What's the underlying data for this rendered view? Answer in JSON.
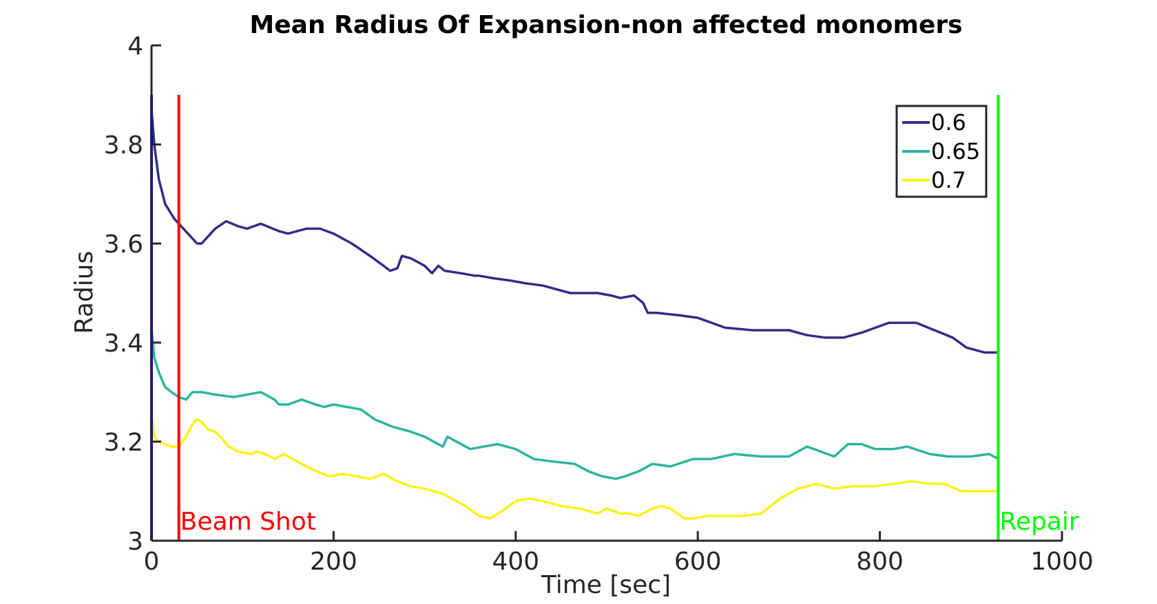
{
  "chart_data": {
    "type": "line",
    "title": "Mean Radius Of Expansion-non affected monomers",
    "xlabel": "Time [sec]",
    "ylabel": "Radius",
    "xlim": [
      0,
      1000
    ],
    "ylim": [
      3,
      4
    ],
    "xticks": [
      0,
      200,
      400,
      600,
      800,
      1000
    ],
    "yticks": [
      3,
      3.2,
      3.4,
      3.6,
      3.8,
      4
    ],
    "xtick_labels": [
      "0",
      "200",
      "400",
      "600",
      "800",
      "1000"
    ],
    "ytick_labels": [
      "3",
      "3.2",
      "3.4",
      "3.6",
      "3.8",
      "4"
    ],
    "grid": false,
    "legend_position": "top-right",
    "series": [
      {
        "name": "0.6",
        "color": "#352a87",
        "x": [
          0,
          3,
          8,
          15,
          25,
          40,
          50,
          55,
          60,
          70,
          82,
          95,
          105,
          120,
          140,
          150,
          170,
          185,
          200,
          220,
          240,
          255,
          262,
          270,
          275,
          285,
          300,
          308,
          315,
          322,
          340,
          355,
          360,
          375,
          395,
          410,
          430,
          450,
          460,
          475,
          490,
          505,
          515,
          530,
          540,
          545,
          555,
          580,
          600,
          630,
          660,
          700,
          720,
          740,
          760,
          780,
          810,
          840,
          860,
          880,
          895,
          905,
          915,
          930
        ],
        "y": [
          3.87,
          3.8,
          3.73,
          3.68,
          3.65,
          3.62,
          3.6,
          3.6,
          3.61,
          3.63,
          3.645,
          3.635,
          3.63,
          3.64,
          3.625,
          3.62,
          3.63,
          3.63,
          3.62,
          3.6,
          3.575,
          3.555,
          3.545,
          3.55,
          3.575,
          3.57,
          3.555,
          3.54,
          3.555,
          3.545,
          3.54,
          3.535,
          3.535,
          3.53,
          3.525,
          3.52,
          3.515,
          3.505,
          3.5,
          3.5,
          3.5,
          3.495,
          3.49,
          3.495,
          3.48,
          3.46,
          3.46,
          3.455,
          3.45,
          3.43,
          3.425,
          3.425,
          3.415,
          3.41,
          3.41,
          3.42,
          3.44,
          3.44,
          3.425,
          3.41,
          3.39,
          3.385,
          3.38,
          3.38
        ]
      },
      {
        "name": "0.65",
        "color": "#2cb59c",
        "x": [
          0,
          3,
          8,
          15,
          22,
          30,
          38,
          45,
          55,
          70,
          90,
          105,
          120,
          135,
          140,
          150,
          165,
          180,
          190,
          200,
          215,
          230,
          245,
          265,
          285,
          300,
          320,
          325,
          335,
          350,
          365,
          380,
          400,
          420,
          440,
          465,
          480,
          495,
          510,
          520,
          535,
          550,
          570,
          595,
          615,
          640,
          670,
          700,
          720,
          735,
          750,
          765,
          780,
          795,
          805,
          815,
          830,
          855,
          875,
          900,
          920,
          930
        ],
        "y": [
          3.43,
          3.37,
          3.34,
          3.31,
          3.3,
          3.29,
          3.285,
          3.3,
          3.3,
          3.295,
          3.29,
          3.295,
          3.3,
          3.285,
          3.275,
          3.275,
          3.285,
          3.275,
          3.27,
          3.275,
          3.27,
          3.265,
          3.245,
          3.23,
          3.22,
          3.21,
          3.19,
          3.21,
          3.2,
          3.185,
          3.19,
          3.195,
          3.185,
          3.165,
          3.16,
          3.155,
          3.14,
          3.13,
          3.125,
          3.13,
          3.14,
          3.155,
          3.15,
          3.165,
          3.165,
          3.175,
          3.17,
          3.17,
          3.19,
          3.18,
          3.17,
          3.195,
          3.195,
          3.185,
          3.185,
          3.185,
          3.19,
          3.175,
          3.17,
          3.17,
          3.175,
          3.165
        ]
      },
      {
        "name": "0.7",
        "color": "#f9f21a",
        "x": [
          0,
          3,
          8,
          15,
          22,
          30,
          38,
          45,
          50,
          55,
          62,
          70,
          78,
          85,
          95,
          110,
          115,
          125,
          135,
          145,
          160,
          175,
          195,
          210,
          225,
          240,
          255,
          270,
          285,
          300,
          320,
          345,
          360,
          372,
          385,
          400,
          415,
          430,
          450,
          470,
          490,
          500,
          515,
          525,
          535,
          550,
          560,
          570,
          585,
          595,
          610,
          625,
          650,
          670,
          690,
          710,
          730,
          750,
          770,
          795,
          815,
          835,
          855,
          870,
          890,
          910,
          930
        ],
        "y": [
          3.26,
          3.21,
          3.2,
          3.195,
          3.19,
          3.19,
          3.21,
          3.235,
          3.245,
          3.24,
          3.225,
          3.22,
          3.205,
          3.19,
          3.18,
          3.175,
          3.18,
          3.175,
          3.165,
          3.175,
          3.16,
          3.145,
          3.13,
          3.135,
          3.13,
          3.125,
          3.135,
          3.12,
          3.11,
          3.105,
          3.095,
          3.07,
          3.05,
          3.045,
          3.06,
          3.08,
          3.085,
          3.08,
          3.07,
          3.065,
          3.055,
          3.065,
          3.055,
          3.055,
          3.05,
          3.065,
          3.07,
          3.065,
          3.045,
          3.045,
          3.05,
          3.05,
          3.05,
          3.055,
          3.085,
          3.105,
          3.115,
          3.105,
          3.11,
          3.11,
          3.115,
          3.12,
          3.115,
          3.115,
          3.1,
          3.1,
          3.1
        ]
      }
    ],
    "annotations": [
      {
        "label": "Beam Shot",
        "x": 30,
        "y_from": 3,
        "y_to": 3.9,
        "color": "#ff0000"
      },
      {
        "label": "Repair",
        "x": 930,
        "y_from": 3,
        "y_to": 3.9,
        "color": "#00ff00"
      },
      {
        "label": "",
        "x": 0,
        "y_from": 3,
        "y_to": 3.9,
        "color": "#0000ff"
      }
    ]
  }
}
